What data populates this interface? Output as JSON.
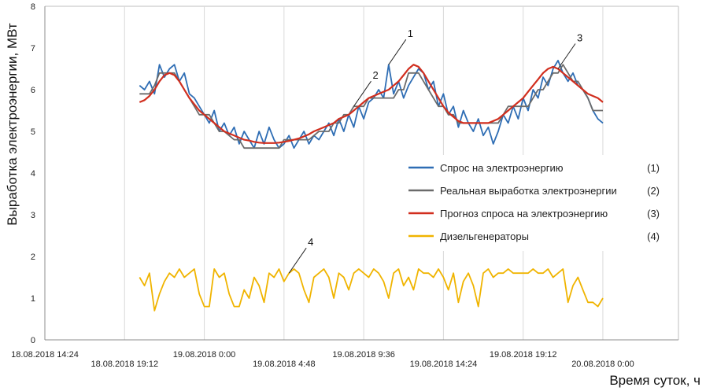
{
  "chart_data": {
    "type": "line",
    "ylabel": "Выработка электроэнергии, МВт",
    "xlabel": "Время суток, ч",
    "ylim": [
      0,
      8
    ],
    "yticks": [
      "0",
      "1",
      "2",
      "3",
      "4",
      "5",
      "6",
      "7",
      "8"
    ],
    "xlim": [
      "18.08.2018 14:24",
      "20.08.2018 04:48"
    ],
    "xticks": [
      {
        "label": "18.08.2018 14:24",
        "h": 0
      },
      {
        "label": "18.08.2018 19:12",
        "h": 4.8
      },
      {
        "label": "19.08.2018 0:00",
        "h": 9.6
      },
      {
        "label": "19.08.2018 4:48",
        "h": 14.4
      },
      {
        "label": "19.08.2018 9:36",
        "h": 19.2
      },
      {
        "label": "19.08.2018 14:24",
        "h": 24.0
      },
      {
        "label": "19.08.2018 19:12",
        "h": 28.8
      },
      {
        "label": "20.08.2018 0:00",
        "h": 33.6
      }
    ],
    "grid": "vertical",
    "legend_position": "center-right",
    "series": [
      {
        "name": "Спрос на электроэнергию",
        "key": "(1)",
        "color": "#2e6db4",
        "x": [
          5.7,
          6.0,
          6.3,
          6.6,
          6.9,
          7.2,
          7.5,
          7.8,
          8.1,
          8.4,
          8.7,
          9.0,
          9.3,
          9.6,
          9.9,
          10.2,
          10.5,
          10.8,
          11.1,
          11.4,
          11.7,
          12.0,
          12.3,
          12.6,
          12.9,
          13.2,
          13.5,
          13.8,
          14.1,
          14.4,
          14.7,
          15.0,
          15.3,
          15.6,
          15.9,
          16.2,
          16.5,
          16.8,
          17.1,
          17.4,
          17.7,
          18.0,
          18.3,
          18.6,
          18.9,
          19.2,
          19.5,
          19.8,
          20.1,
          20.4,
          20.7,
          21.0,
          21.3,
          21.6,
          21.9,
          22.2,
          22.5,
          22.8,
          23.1,
          23.4,
          23.7,
          24.0,
          24.3,
          24.6,
          24.9,
          25.2,
          25.5,
          25.8,
          26.1,
          26.4,
          26.7,
          27.0,
          27.3,
          27.6,
          27.9,
          28.2,
          28.5,
          28.8,
          29.1,
          29.4,
          29.7,
          30.0,
          30.3,
          30.6,
          30.9,
          31.2,
          31.5,
          31.8,
          32.1,
          32.4,
          32.7,
          33.0,
          33.3,
          33.6
        ],
        "y": [
          6.1,
          6.0,
          6.2,
          5.9,
          6.6,
          6.3,
          6.5,
          6.6,
          6.2,
          6.4,
          5.9,
          5.8,
          5.6,
          5.4,
          5.2,
          5.5,
          5.0,
          5.2,
          4.9,
          5.1,
          4.7,
          5.0,
          4.8,
          4.6,
          5.0,
          4.7,
          5.1,
          4.8,
          4.6,
          4.7,
          4.9,
          4.6,
          4.8,
          5.0,
          4.7,
          4.9,
          4.8,
          5.0,
          5.2,
          4.9,
          5.3,
          5.0,
          5.4,
          5.1,
          5.6,
          5.3,
          5.7,
          5.8,
          6.0,
          5.8,
          6.6,
          5.9,
          6.2,
          5.8,
          6.1,
          6.3,
          6.5,
          6.4,
          6.0,
          6.2,
          5.6,
          5.9,
          5.4,
          5.6,
          5.1,
          5.5,
          5.2,
          5.0,
          5.3,
          4.9,
          5.1,
          4.7,
          5.0,
          5.4,
          5.2,
          5.6,
          5.3,
          5.8,
          5.5,
          6.0,
          5.8,
          6.3,
          6.1,
          6.5,
          6.7,
          6.4,
          6.2,
          6.4,
          6.1,
          6.0,
          5.8,
          5.5,
          5.3,
          5.2
        ]
      },
      {
        "name": "Реальная выработка электроэнергии",
        "key": "(2)",
        "color": "#6b6b6b",
        "x": [
          5.7,
          6.0,
          6.3,
          6.6,
          6.9,
          7.2,
          7.5,
          7.8,
          8.1,
          8.4,
          8.7,
          9.0,
          9.3,
          9.6,
          9.9,
          10.2,
          10.5,
          10.8,
          11.1,
          11.4,
          11.7,
          12.0,
          12.3,
          12.6,
          12.9,
          13.2,
          13.5,
          13.8,
          14.1,
          14.4,
          14.7,
          15.0,
          15.3,
          15.6,
          15.9,
          16.2,
          16.5,
          16.8,
          17.1,
          17.4,
          17.7,
          18.0,
          18.3,
          18.6,
          18.9,
          19.2,
          19.5,
          19.8,
          20.1,
          20.4,
          20.7,
          21.0,
          21.3,
          21.6,
          21.9,
          22.2,
          22.5,
          22.8,
          23.1,
          23.4,
          23.7,
          24.0,
          24.3,
          24.6,
          24.9,
          25.2,
          25.5,
          25.8,
          26.1,
          26.4,
          26.7,
          27.0,
          27.3,
          27.6,
          27.9,
          28.2,
          28.5,
          28.8,
          29.1,
          29.4,
          29.7,
          30.0,
          30.3,
          30.6,
          30.9,
          31.2,
          31.5,
          31.8,
          32.1,
          32.4,
          32.7,
          33.0,
          33.3,
          33.6
        ],
        "y": [
          5.9,
          5.9,
          5.9,
          6.1,
          6.4,
          6.4,
          6.4,
          6.4,
          6.2,
          6.0,
          5.8,
          5.6,
          5.4,
          5.4,
          5.4,
          5.2,
          5.0,
          5.0,
          4.9,
          4.8,
          4.8,
          4.6,
          4.6,
          4.6,
          4.6,
          4.6,
          4.6,
          4.6,
          4.6,
          4.8,
          4.8,
          4.8,
          4.8,
          4.8,
          4.8,
          4.9,
          5.0,
          5.0,
          5.0,
          5.2,
          5.2,
          5.4,
          5.4,
          5.6,
          5.6,
          5.6,
          5.8,
          5.8,
          5.8,
          5.8,
          5.8,
          5.8,
          6.0,
          6.0,
          6.4,
          6.4,
          6.4,
          6.2,
          6.0,
          5.8,
          5.6,
          5.6,
          5.4,
          5.4,
          5.2,
          5.2,
          5.2,
          5.2,
          5.2,
          5.2,
          5.2,
          5.2,
          5.2,
          5.4,
          5.6,
          5.6,
          5.6,
          5.6,
          5.6,
          5.8,
          6.0,
          6.0,
          6.2,
          6.4,
          6.4,
          6.6,
          6.4,
          6.2,
          6.2,
          6.0,
          5.8,
          5.5,
          5.5,
          5.5
        ]
      },
      {
        "name": "Прогноз спроса на электроэнергию",
        "key": "(3)",
        "color": "#d12e1e",
        "x": [
          5.7,
          6.0,
          6.3,
          6.6,
          6.9,
          7.2,
          7.5,
          7.8,
          8.1,
          8.4,
          8.7,
          9.0,
          9.3,
          9.6,
          9.9,
          10.2,
          10.5,
          10.8,
          11.1,
          11.4,
          11.7,
          12.0,
          12.3,
          12.6,
          12.9,
          13.2,
          13.5,
          13.8,
          14.1,
          14.4,
          14.7,
          15.0,
          15.3,
          15.6,
          15.9,
          16.2,
          16.5,
          16.8,
          17.1,
          17.4,
          17.7,
          18.0,
          18.3,
          18.6,
          18.9,
          19.2,
          19.5,
          19.8,
          20.1,
          20.4,
          20.7,
          21.0,
          21.3,
          21.6,
          21.9,
          22.2,
          22.5,
          22.8,
          23.1,
          23.4,
          23.7,
          24.0,
          24.3,
          24.6,
          24.9,
          25.2,
          25.5,
          25.8,
          26.1,
          26.4,
          26.7,
          27.0,
          27.3,
          27.6,
          27.9,
          28.2,
          28.5,
          28.8,
          29.1,
          29.4,
          29.7,
          30.0,
          30.3,
          30.6,
          30.9,
          31.2,
          31.5,
          31.8,
          32.1,
          32.4,
          32.7,
          33.0,
          33.3,
          33.6
        ],
        "y": [
          5.7,
          5.75,
          5.85,
          6.0,
          6.2,
          6.35,
          6.4,
          6.35,
          6.2,
          6.0,
          5.8,
          5.65,
          5.5,
          5.4,
          5.3,
          5.2,
          5.1,
          5.0,
          4.95,
          4.9,
          4.85,
          4.8,
          4.78,
          4.75,
          4.73,
          4.72,
          4.72,
          4.72,
          4.73,
          4.75,
          4.77,
          4.8,
          4.83,
          4.88,
          4.93,
          5.0,
          5.05,
          5.1,
          5.15,
          5.2,
          5.3,
          5.35,
          5.4,
          5.5,
          5.6,
          5.7,
          5.8,
          5.85,
          5.9,
          5.95,
          6.0,
          6.1,
          6.2,
          6.35,
          6.5,
          6.6,
          6.55,
          6.4,
          6.2,
          6.0,
          5.8,
          5.6,
          5.45,
          5.35,
          5.25,
          5.2,
          5.2,
          5.2,
          5.2,
          5.2,
          5.2,
          5.25,
          5.3,
          5.4,
          5.5,
          5.6,
          5.7,
          5.8,
          5.95,
          6.1,
          6.25,
          6.4,
          6.5,
          6.55,
          6.5,
          6.4,
          6.3,
          6.2,
          6.1,
          6.0,
          5.9,
          5.85,
          5.8,
          5.7
        ]
      },
      {
        "name": "Дизельгенераторы",
        "key": "(4)",
        "color": "#f0b400",
        "x": [
          5.7,
          6.0,
          6.3,
          6.6,
          6.9,
          7.2,
          7.5,
          7.8,
          8.1,
          8.4,
          8.7,
          9.0,
          9.3,
          9.6,
          9.9,
          10.2,
          10.5,
          10.8,
          11.1,
          11.4,
          11.7,
          12.0,
          12.3,
          12.6,
          12.9,
          13.2,
          13.5,
          13.8,
          14.1,
          14.4,
          14.7,
          15.0,
          15.3,
          15.6,
          15.9,
          16.2,
          16.5,
          16.8,
          17.1,
          17.4,
          17.7,
          18.0,
          18.3,
          18.6,
          18.9,
          19.2,
          19.5,
          19.8,
          20.1,
          20.4,
          20.7,
          21.0,
          21.3,
          21.6,
          21.9,
          22.2,
          22.5,
          22.8,
          23.1,
          23.4,
          23.7,
          24.0,
          24.3,
          24.6,
          24.9,
          25.2,
          25.5,
          25.8,
          26.1,
          26.4,
          26.7,
          27.0,
          27.3,
          27.6,
          27.9,
          28.2,
          28.5,
          28.8,
          29.1,
          29.4,
          29.7,
          30.0,
          30.3,
          30.6,
          30.9,
          31.2,
          31.5,
          31.8,
          32.1,
          32.4,
          32.7,
          33.0,
          33.3,
          33.6
        ],
        "y": [
          1.5,
          1.3,
          1.6,
          0.7,
          1.1,
          1.4,
          1.6,
          1.5,
          1.7,
          1.5,
          1.6,
          1.7,
          1.1,
          0.8,
          0.8,
          1.7,
          1.5,
          1.6,
          1.1,
          0.8,
          0.8,
          1.2,
          1.0,
          1.5,
          1.3,
          0.9,
          1.6,
          1.5,
          1.7,
          1.4,
          1.6,
          1.7,
          1.6,
          1.2,
          0.9,
          1.5,
          1.6,
          1.7,
          1.5,
          1.0,
          1.6,
          1.5,
          1.2,
          1.6,
          1.7,
          1.6,
          1.5,
          1.7,
          1.6,
          1.4,
          1.0,
          1.6,
          1.7,
          1.3,
          1.5,
          1.2,
          1.7,
          1.6,
          1.6,
          1.5,
          1.7,
          1.5,
          1.2,
          1.6,
          0.9,
          1.4,
          1.6,
          1.3,
          0.8,
          1.6,
          1.7,
          1.5,
          1.6,
          1.6,
          1.7,
          1.6,
          1.6,
          1.6,
          1.6,
          1.7,
          1.6,
          1.6,
          1.7,
          1.5,
          1.6,
          1.7,
          0.9,
          1.3,
          1.5,
          1.2,
          0.9,
          0.9,
          0.8,
          1.0
        ]
      }
    ],
    "annotations": [
      {
        "label": "1",
        "series": 0,
        "h": 20.7
      },
      {
        "label": "2",
        "series": 1,
        "h": 18.4
      },
      {
        "label": "3",
        "series": 2,
        "h": 30.9
      },
      {
        "label": "4",
        "series": 3,
        "h": 14.7
      }
    ]
  }
}
